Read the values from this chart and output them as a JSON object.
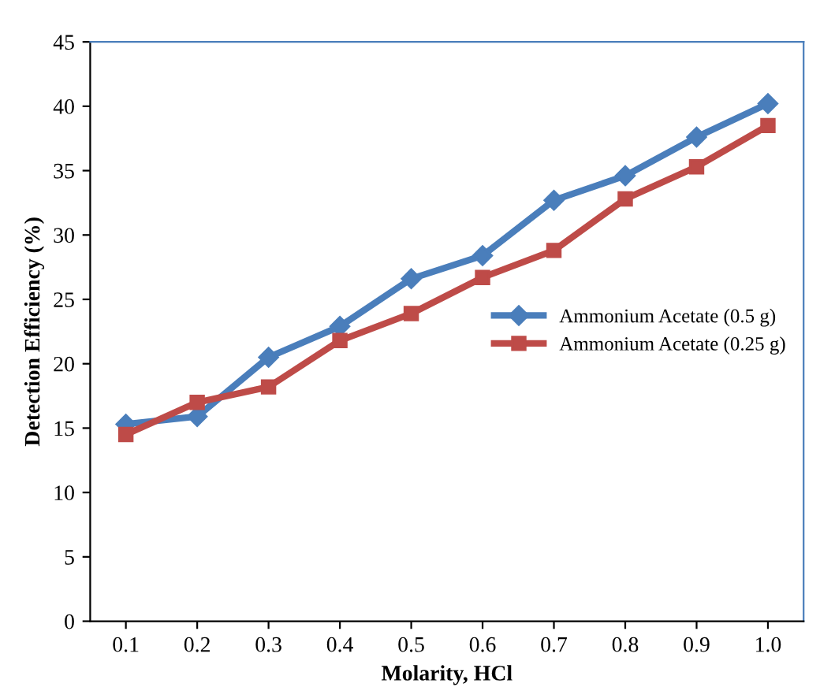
{
  "chart_data": {
    "type": "line",
    "xlabel": "Molarity, HCl",
    "ylabel": "Detection Efficiency (%)",
    "categories": [
      "0.1",
      "0.2",
      "0.3",
      "0.4",
      "0.5",
      "0.6",
      "0.7",
      "0.8",
      "0.9",
      "1.0"
    ],
    "ylim": [
      0,
      45
    ],
    "yticks": [
      0,
      5,
      10,
      15,
      20,
      25,
      30,
      35,
      40,
      45
    ],
    "grid": false,
    "legend": "right",
    "series": [
      {
        "name": "Ammonium Acetate (0.5 g)",
        "color": "#4a7ebb",
        "marker": "diamond",
        "values": [
          15.3,
          15.9,
          20.5,
          22.9,
          26.6,
          28.4,
          32.7,
          34.6,
          37.6,
          40.2
        ]
      },
      {
        "name": "Ammonium Acetate (0.25 g)",
        "color": "#be4b48",
        "marker": "square",
        "values": [
          14.5,
          17.0,
          18.2,
          21.8,
          23.9,
          26.7,
          28.8,
          32.8,
          35.3,
          38.5
        ]
      }
    ]
  }
}
